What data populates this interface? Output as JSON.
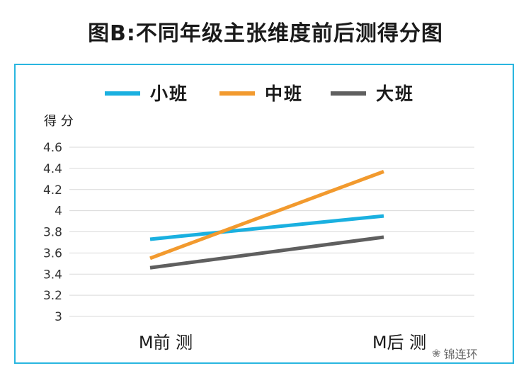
{
  "title": "图B:不同年级主张维度前后测得分图",
  "watermark": "锦连环",
  "colors": {
    "frame": "#29b6e0",
    "grid": "#d9d9d9",
    "text": "#1a1a1a"
  },
  "chart_data": {
    "type": "line",
    "ylabel": "得 分",
    "xlabel": "",
    "categories": [
      "M前 测",
      "M后 测"
    ],
    "ylim": [
      3,
      4.6
    ],
    "yticks": [
      "3",
      "3.2",
      "3.4",
      "3.6",
      "3.8",
      "4",
      "4.2",
      "4.4",
      "4.6"
    ],
    "ytick_values": [
      3,
      3.2,
      3.4,
      3.6,
      3.8,
      4,
      4.2,
      4.4,
      4.6
    ],
    "grid": true,
    "legend_position": "top-center",
    "series": [
      {
        "name": "小班",
        "color": "#1ab0e0",
        "values": [
          3.73,
          3.95
        ]
      },
      {
        "name": "中班",
        "color": "#f29a2e",
        "values": [
          3.55,
          4.37
        ]
      },
      {
        "name": "大班",
        "color": "#5f5f5f",
        "values": [
          3.46,
          3.75
        ]
      }
    ]
  }
}
